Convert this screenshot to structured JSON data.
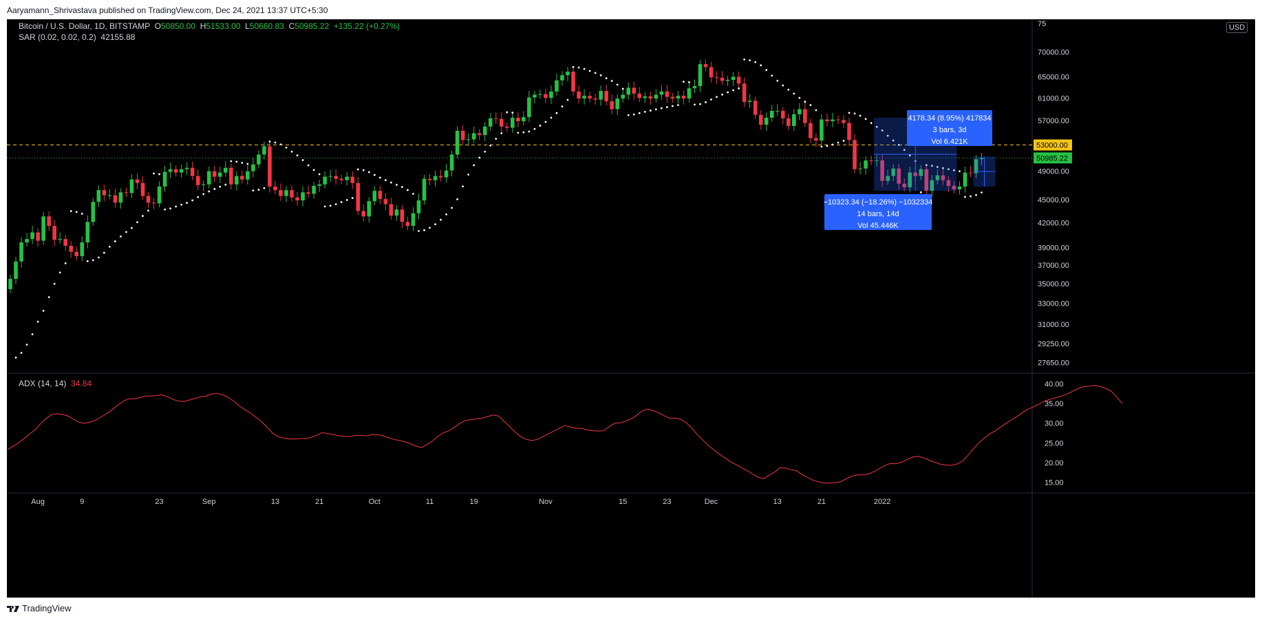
{
  "header": {
    "published_text": "Aaryamann_Shrivastava published on TradingView.com, Dec 24, 2021 13:37 UTC+5:30"
  },
  "footer": {
    "brand": "TradingView",
    "logo_icon": "tradingview-logo-icon"
  },
  "legend": {
    "symbol": "Bitcoin / U.S. Dollar, 1D, BITSTAMP",
    "o_label": "O",
    "o_value": "50850.00",
    "h_label": "H",
    "h_value": "51533.00",
    "l_label": "L",
    "l_value": "50660.83",
    "c_label": "C",
    "c_value": "50985.22",
    "change": "+135.22 (+0.27%)",
    "sar_label": "SAR (0.02, 0.02, 0.2)",
    "sar_value": "42155.88",
    "adx_label": "ADX (14, 14)",
    "adx_value": "34.84"
  },
  "currency": "USD",
  "colors": {
    "up": "#26c244",
    "down": "#f23645",
    "sar": "#ffffff",
    "adx": "#f23645",
    "hline": "#f5c518",
    "measure": "#2962ff"
  },
  "chart_data": [
    {
      "type": "candlestick",
      "ylim": [
        27000,
        75000
      ],
      "y_ticks_label_top": "75",
      "y_ticks": [
        "70000.00",
        "65000.00",
        "61000.00",
        "57000.00",
        "53000.00",
        "49000.00",
        "45000.00",
        "42000.00",
        "39000.00",
        "37000.00",
        "35000.00",
        "33000.00",
        "31000.00",
        "29250.00",
        "27650.00"
      ],
      "y_tick_values": [
        70000,
        65000,
        61000,
        57000,
        53000,
        49000,
        45000,
        42000,
        39000,
        37000,
        35000,
        33000,
        31000,
        29250,
        27650
      ],
      "x_ticks": [
        "Aug",
        "9",
        "23",
        "Sep",
        "13",
        "21",
        "Oct",
        "11",
        "19",
        "Nov",
        "15",
        "23",
        "Dec",
        "13",
        "21",
        "2022"
      ],
      "x_tick_dates": [
        "2021-08-01",
        "2021-08-09",
        "2021-08-23",
        "2021-09-01",
        "2021-09-13",
        "2021-09-21",
        "2021-10-01",
        "2021-10-11",
        "2021-10-19",
        "2021-11-01",
        "2021-11-15",
        "2021-11-23",
        "2021-12-01",
        "2021-12-13",
        "2021-12-21",
        "2022-01-01"
      ],
      "start_date": "2021-07-27",
      "horizontal_line": {
        "value": 53000,
        "label": "53000.00"
      },
      "last_price": {
        "value": 50985.22,
        "label": "50985.22"
      },
      "closes": [
        35500,
        37400,
        39600,
        40000,
        40800,
        39800,
        42800,
        41600,
        39900,
        40000,
        39200,
        38500,
        38000,
        39600,
        42100,
        44700,
        46300,
        45600,
        45600,
        44600,
        46000,
        45900,
        47800,
        47300,
        45500,
        44600,
        44500,
        46800,
        48900,
        49300,
        48800,
        49300,
        49500,
        48300,
        47000,
        47100,
        49000,
        48200,
        48800,
        49500,
        47100,
        48300,
        47800,
        49000,
        50000,
        51500,
        52800,
        46800,
        46300,
        45500,
        46300,
        45300,
        44900,
        46000,
        45800,
        46900,
        47100,
        48200,
        48300,
        47900,
        47700,
        48200,
        47300,
        43500,
        42800,
        44800,
        46200,
        45100,
        44400,
        42900,
        43700,
        42100,
        41600,
        43200,
        44900,
        47900,
        47700,
        48300,
        48100,
        49100,
        51500,
        55300,
        53800,
        53900,
        54900,
        54600,
        56000,
        57400,
        57300,
        56000,
        55800,
        57500,
        56900,
        57600,
        61100,
        61600,
        61700,
        61000,
        62200,
        64300,
        65300,
        66000,
        62200,
        60900,
        61400,
        60900,
        60700,
        62300,
        60400,
        59000,
        60900,
        61600,
        62900,
        61800,
        61000,
        61300,
        60900,
        61600,
        62200,
        61200,
        60900,
        61400,
        60900,
        62800,
        63200,
        67500,
        66900,
        64900,
        64800,
        64200,
        64400,
        65000,
        63700,
        60300,
        60500,
        58000,
        56300,
        57500,
        58700,
        58700,
        57400,
        56100,
        58100,
        59000,
        56600,
        54100,
        53700,
        57200,
        56900,
        57200,
        57100,
        56600,
        53800,
        49300,
        49400,
        50600,
        50500,
        50600,
        47600,
        48300,
        49400,
        47200,
        46700,
        48800,
        48300,
        49300,
        46200,
        47700,
        48400,
        47700,
        46900,
        46400,
        46800,
        48800,
        48700,
        50800,
        51000
      ]
    },
    {
      "type": "line",
      "name": "ADX (14, 14)",
      "ylim": [
        13,
        42
      ],
      "y_ticks": [
        "40.00",
        "35.00",
        "30.00",
        "25.00",
        "20.00",
        "15.00"
      ],
      "y_tick_values": [
        40,
        35,
        30,
        25,
        20,
        15
      ],
      "values": [
        23.3,
        24.2,
        25.0,
        26.1,
        27.3,
        28.3,
        29.9,
        31.2,
        32.2,
        32.4,
        32.2,
        31.8,
        31.0,
        30.2,
        30.0,
        30.3,
        30.8,
        31.6,
        32.5,
        33.5,
        34.6,
        35.6,
        36.2,
        36.2,
        36.5,
        36.9,
        36.9,
        37.0,
        37.2,
        36.7,
        36.0,
        35.6,
        35.5,
        35.9,
        36.3,
        36.7,
        36.9,
        37.4,
        37.6,
        37.2,
        36.5,
        35.6,
        34.4,
        33.4,
        32.6,
        31.5,
        30.4,
        29.0,
        27.5,
        26.6,
        26.2,
        26.0,
        26.0,
        26.1,
        26.1,
        26.4,
        26.9,
        27.6,
        27.4,
        27.1,
        26.8,
        26.7,
        26.6,
        26.9,
        26.9,
        26.8,
        27.1,
        27.1,
        26.8,
        26.3,
        25.9,
        25.6,
        25.3,
        24.8,
        24.2,
        23.8,
        24.6,
        25.5,
        26.7,
        27.6,
        28.1,
        29.0,
        30.0,
        30.7,
        30.9,
        31.1,
        31.3,
        31.7,
        32.1,
        31.8,
        30.4,
        29.1,
        27.7,
        26.6,
        25.9,
        25.6,
        25.9,
        26.6,
        27.3,
        28.0,
        28.7,
        29.4,
        29.0,
        28.7,
        28.7,
        28.3,
        28.1,
        28.0,
        28.1,
        29.1,
        30.0,
        30.1,
        30.5,
        31.1,
        32.0,
        33.1,
        33.6,
        33.2,
        32.6,
        31.9,
        31.2,
        31.3,
        31.0,
        30.1,
        28.7,
        27.1,
        25.7,
        24.3,
        23.2,
        22.1,
        21.2,
        20.2,
        19.5,
        18.7,
        18.0,
        17.1,
        16.3,
        15.9,
        16.8,
        17.6,
        18.7,
        18.6,
        18.2,
        17.9,
        16.9,
        16.2,
        15.5,
        15.1,
        14.8,
        14.8,
        14.9,
        15.2,
        15.9,
        16.6,
        16.9,
        16.9,
        17.1,
        17.7,
        18.5,
        19.3,
        19.8,
        19.7,
        20.1,
        20.8,
        21.4,
        21.6,
        21.2,
        20.6,
        20.1,
        19.6,
        19.4,
        19.3,
        19.6,
        20.3,
        21.8,
        23.5,
        25.0,
        26.2,
        27.3,
        28.1,
        29.1,
        30.0,
        30.9,
        31.8,
        32.8,
        33.6,
        34.2,
        34.9,
        35.7,
        36.1,
        36.5,
        36.9,
        37.4,
        38.1,
        38.8,
        39.3,
        39.4,
        39.6,
        39.3,
        38.8,
        38.1,
        36.6,
        35.0
      ]
    }
  ],
  "measurements": [
    {
      "line1": "4178.34 (8.95%) 417834",
      "line2": "3 bars, 3d",
      "line3": "Vol 6.421K"
    },
    {
      "line1": "−10323.34 (−18.26%) −1032334",
      "line2": "14 bars, 14d",
      "line3": "Vol 45.446K"
    }
  ]
}
